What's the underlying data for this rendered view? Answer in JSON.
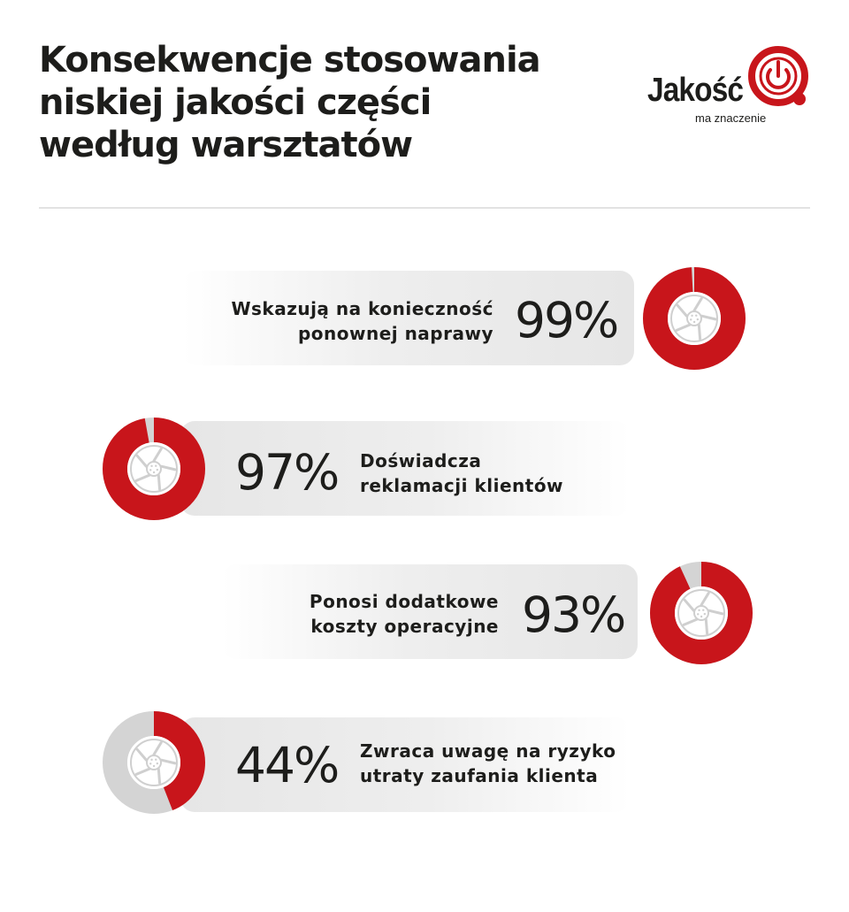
{
  "title_lines": [
    "Konsekwencje stosowania",
    "niskiej jakości części",
    "według warsztatów"
  ],
  "logo": {
    "word": "Jakość",
    "subtitle": "ma znaczenie"
  },
  "colors": {
    "accent": "#c8151b",
    "remainder": "#d4d4d4",
    "wheel": "#cfcfcf"
  },
  "icon": "wheel-icon",
  "chart_data": {
    "type": "pie",
    "title": "Konsekwencje stosowania niskiej jakości części według warsztatów",
    "unit": "%",
    "items": [
      {
        "label_lines": [
          "Wskazują na konieczność",
          "ponownej naprawy"
        ],
        "value": 99,
        "display": "99%"
      },
      {
        "label_lines": [
          "Doświadcza",
          "reklamacji klientów"
        ],
        "value": 97,
        "display": "97%"
      },
      {
        "label_lines": [
          "Ponosi dodatkowe",
          "koszty operacyjne"
        ],
        "value": 93,
        "display": "93%"
      },
      {
        "label_lines": [
          "Zwraca uwagę na ryzyko",
          "utraty zaufania klienta"
        ],
        "value": 44,
        "display": "44%"
      }
    ]
  }
}
